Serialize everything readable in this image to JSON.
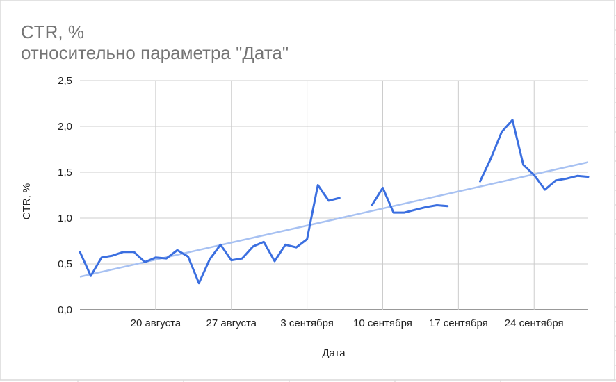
{
  "chart_data": {
    "type": "line",
    "title": "CTR, %",
    "subtitle": "относительно параметра \"Дата\"",
    "xlabel": "Дата",
    "ylabel": "CTR, %",
    "ylim": [
      0,
      2.5
    ],
    "y_ticks": [
      "0,0",
      "0,5",
      "1,0",
      "1,5",
      "2,0",
      "2,5"
    ],
    "x_range": [
      "2019-08-13",
      "2019-09-29"
    ],
    "x_ticks": [
      {
        "date": "2019-08-20",
        "label": "20 августа"
      },
      {
        "date": "2019-08-27",
        "label": "27 августа"
      },
      {
        "date": "2019-09-03",
        "label": "3 сентября"
      },
      {
        "date": "2019-09-10",
        "label": "10 сентября"
      },
      {
        "date": "2019-09-17",
        "label": "17 сентября"
      },
      {
        "date": "2019-09-24",
        "label": "24 сентября"
      }
    ],
    "grid": true,
    "series": [
      {
        "color": "#3b6fe0",
        "points": [
          {
            "x": "2019-08-13",
            "y": 0.63
          },
          {
            "x": "2019-08-14",
            "y": 0.37
          },
          {
            "x": "2019-08-15",
            "y": 0.57
          },
          {
            "x": "2019-08-16",
            "y": 0.59
          },
          {
            "x": "2019-08-17",
            "y": 0.63
          },
          {
            "x": "2019-08-18",
            "y": 0.63
          },
          {
            "x": "2019-08-19",
            "y": 0.52
          },
          {
            "x": "2019-08-20",
            "y": 0.57
          },
          {
            "x": "2019-08-21",
            "y": 0.56
          },
          {
            "x": "2019-08-22",
            "y": 0.65
          },
          {
            "x": "2019-08-23",
            "y": 0.58
          },
          {
            "x": "2019-08-24",
            "y": 0.29
          },
          {
            "x": "2019-08-25",
            "y": 0.55
          },
          {
            "x": "2019-08-26",
            "y": 0.71
          },
          {
            "x": "2019-08-27",
            "y": 0.54
          },
          {
            "x": "2019-08-28",
            "y": 0.56
          },
          {
            "x": "2019-08-29",
            "y": 0.69
          },
          {
            "x": "2019-08-30",
            "y": 0.74
          },
          {
            "x": "2019-08-31",
            "y": 0.53
          },
          {
            "x": "2019-09-01",
            "y": 0.71
          },
          {
            "x": "2019-09-02",
            "y": 0.68
          },
          {
            "x": "2019-09-03",
            "y": 0.77
          },
          {
            "x": "2019-09-04",
            "y": 1.36
          },
          {
            "x": "2019-09-05",
            "y": 1.19
          },
          {
            "x": "2019-09-06",
            "y": 1.22
          },
          {
            "x": "2019-09-07",
            "y": null
          },
          {
            "x": "2019-09-08",
            "y": null
          },
          {
            "x": "2019-09-09",
            "y": 1.14
          },
          {
            "x": "2019-09-10",
            "y": 1.33
          },
          {
            "x": "2019-09-11",
            "y": 1.06
          },
          {
            "x": "2019-09-12",
            "y": 1.06
          },
          {
            "x": "2019-09-13",
            "y": 1.09
          },
          {
            "x": "2019-09-14",
            "y": 1.12
          },
          {
            "x": "2019-09-15",
            "y": 1.14
          },
          {
            "x": "2019-09-16",
            "y": 1.13
          },
          {
            "x": "2019-09-17",
            "y": null
          },
          {
            "x": "2019-09-18",
            "y": null
          },
          {
            "x": "2019-09-19",
            "y": 1.4
          },
          {
            "x": "2019-09-20",
            "y": 1.65
          },
          {
            "x": "2019-09-21",
            "y": 1.94
          },
          {
            "x": "2019-09-22",
            "y": 2.07
          },
          {
            "x": "2019-09-23",
            "y": 1.58
          },
          {
            "x": "2019-09-24",
            "y": 1.47
          },
          {
            "x": "2019-09-25",
            "y": 1.31
          },
          {
            "x": "2019-09-26",
            "y": 1.41
          },
          {
            "x": "2019-09-27",
            "y": 1.43
          },
          {
            "x": "2019-09-28",
            "y": 1.46
          },
          {
            "x": "2019-09-29",
            "y": 1.45
          }
        ]
      }
    ],
    "trendline": {
      "color": "#a7c1f2",
      "start": {
        "x": "2019-08-13",
        "y": 0.36
      },
      "end": {
        "x": "2019-09-29",
        "y": 1.61
      }
    }
  }
}
